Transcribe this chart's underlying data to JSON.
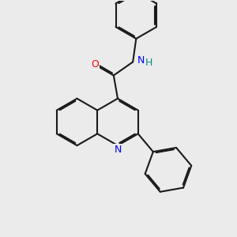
{
  "background_color": "#ebebeb",
  "bond_color": "#1a1a1a",
  "N_color": "#0000ff",
  "O_color": "#ff0000",
  "H_color": "#008b8b",
  "line_width": 1.5,
  "dbo": 0.055,
  "figsize": [
    3.0,
    3.0
  ],
  "dpi": 100,
  "xlim": [
    0,
    10
  ],
  "ylim": [
    0,
    10
  ],
  "bl": 1.0
}
